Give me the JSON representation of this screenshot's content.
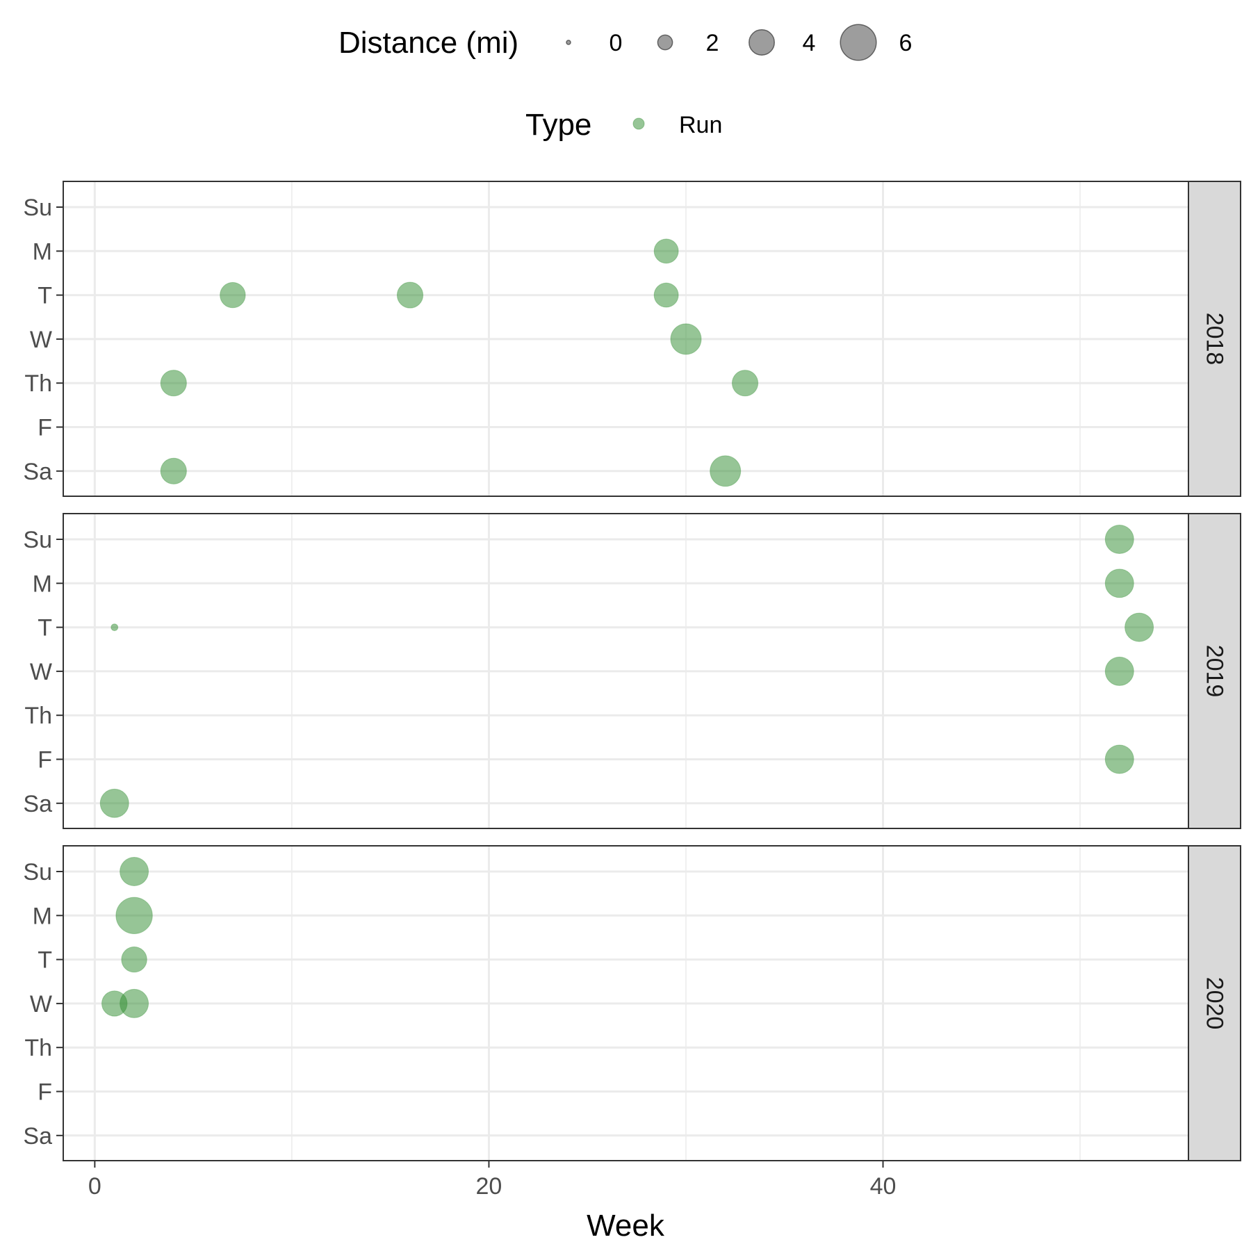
{
  "chart_data": {
    "type": "scatter",
    "xlabel": "Week",
    "x_ticks": [
      "0",
      "20",
      "40"
    ],
    "x_tick_values": [
      0,
      20,
      40
    ],
    "xlim": [
      -1.6,
      55.5
    ],
    "x_minor_gridlines": [
      10,
      30,
      50
    ],
    "y_categories": [
      "Su",
      "M",
      "T",
      "W",
      "Th",
      "F",
      "Sa"
    ],
    "grid": true,
    "legend_placement": "top",
    "size_legend": {
      "title": "Distance (mi)",
      "values": [
        0,
        2,
        4,
        6
      ],
      "labels": [
        "0",
        "2",
        "4",
        "6"
      ]
    },
    "color_legend": {
      "title": "Type",
      "entries": [
        "Run"
      ]
    },
    "colors": {
      "Run": "#2e8b2e",
      "legend_gray": "#4d4d4d",
      "grid": "#ebebeb",
      "strip": "#d9d9d9"
    },
    "panels": [
      {
        "label": "2018",
        "points": [
          {
            "week": 29,
            "day": "M",
            "distance": 3.8,
            "type": "Run"
          },
          {
            "week": 7,
            "day": "T",
            "distance": 4.0,
            "type": "Run"
          },
          {
            "week": 16,
            "day": "T",
            "distance": 4.1,
            "type": "Run"
          },
          {
            "week": 29,
            "day": "T",
            "distance": 3.8,
            "type": "Run"
          },
          {
            "week": 30,
            "day": "W",
            "distance": 5.0,
            "type": "Run"
          },
          {
            "week": 4,
            "day": "Th",
            "distance": 4.1,
            "type": "Run"
          },
          {
            "week": 33,
            "day": "Th",
            "distance": 4.1,
            "type": "Run"
          },
          {
            "week": 4,
            "day": "Sa",
            "distance": 4.1,
            "type": "Run"
          },
          {
            "week": 32,
            "day": "Sa",
            "distance": 5.0,
            "type": "Run"
          }
        ]
      },
      {
        "label": "2019",
        "points": [
          {
            "week": 52,
            "day": "Su",
            "distance": 4.6,
            "type": "Run"
          },
          {
            "week": 52,
            "day": "M",
            "distance": 4.6,
            "type": "Run"
          },
          {
            "week": 1,
            "day": "T",
            "distance": 0.5,
            "type": "Run"
          },
          {
            "week": 53,
            "day": "T",
            "distance": 4.6,
            "type": "Run"
          },
          {
            "week": 52,
            "day": "W",
            "distance": 4.6,
            "type": "Run"
          },
          {
            "week": 52,
            "day": "F",
            "distance": 4.6,
            "type": "Run"
          },
          {
            "week": 1,
            "day": "Sa",
            "distance": 4.6,
            "type": "Run"
          }
        ]
      },
      {
        "label": "2020",
        "points": [
          {
            "week": 2,
            "day": "Su",
            "distance": 4.6,
            "type": "Run"
          },
          {
            "week": 2,
            "day": "M",
            "distance": 6.1,
            "type": "Run"
          },
          {
            "week": 2,
            "day": "T",
            "distance": 4.0,
            "type": "Run"
          },
          {
            "week": 1,
            "day": "W",
            "distance": 4.0,
            "type": "Run"
          },
          {
            "week": 2,
            "day": "W",
            "distance": 4.6,
            "type": "Run"
          }
        ]
      }
    ]
  }
}
